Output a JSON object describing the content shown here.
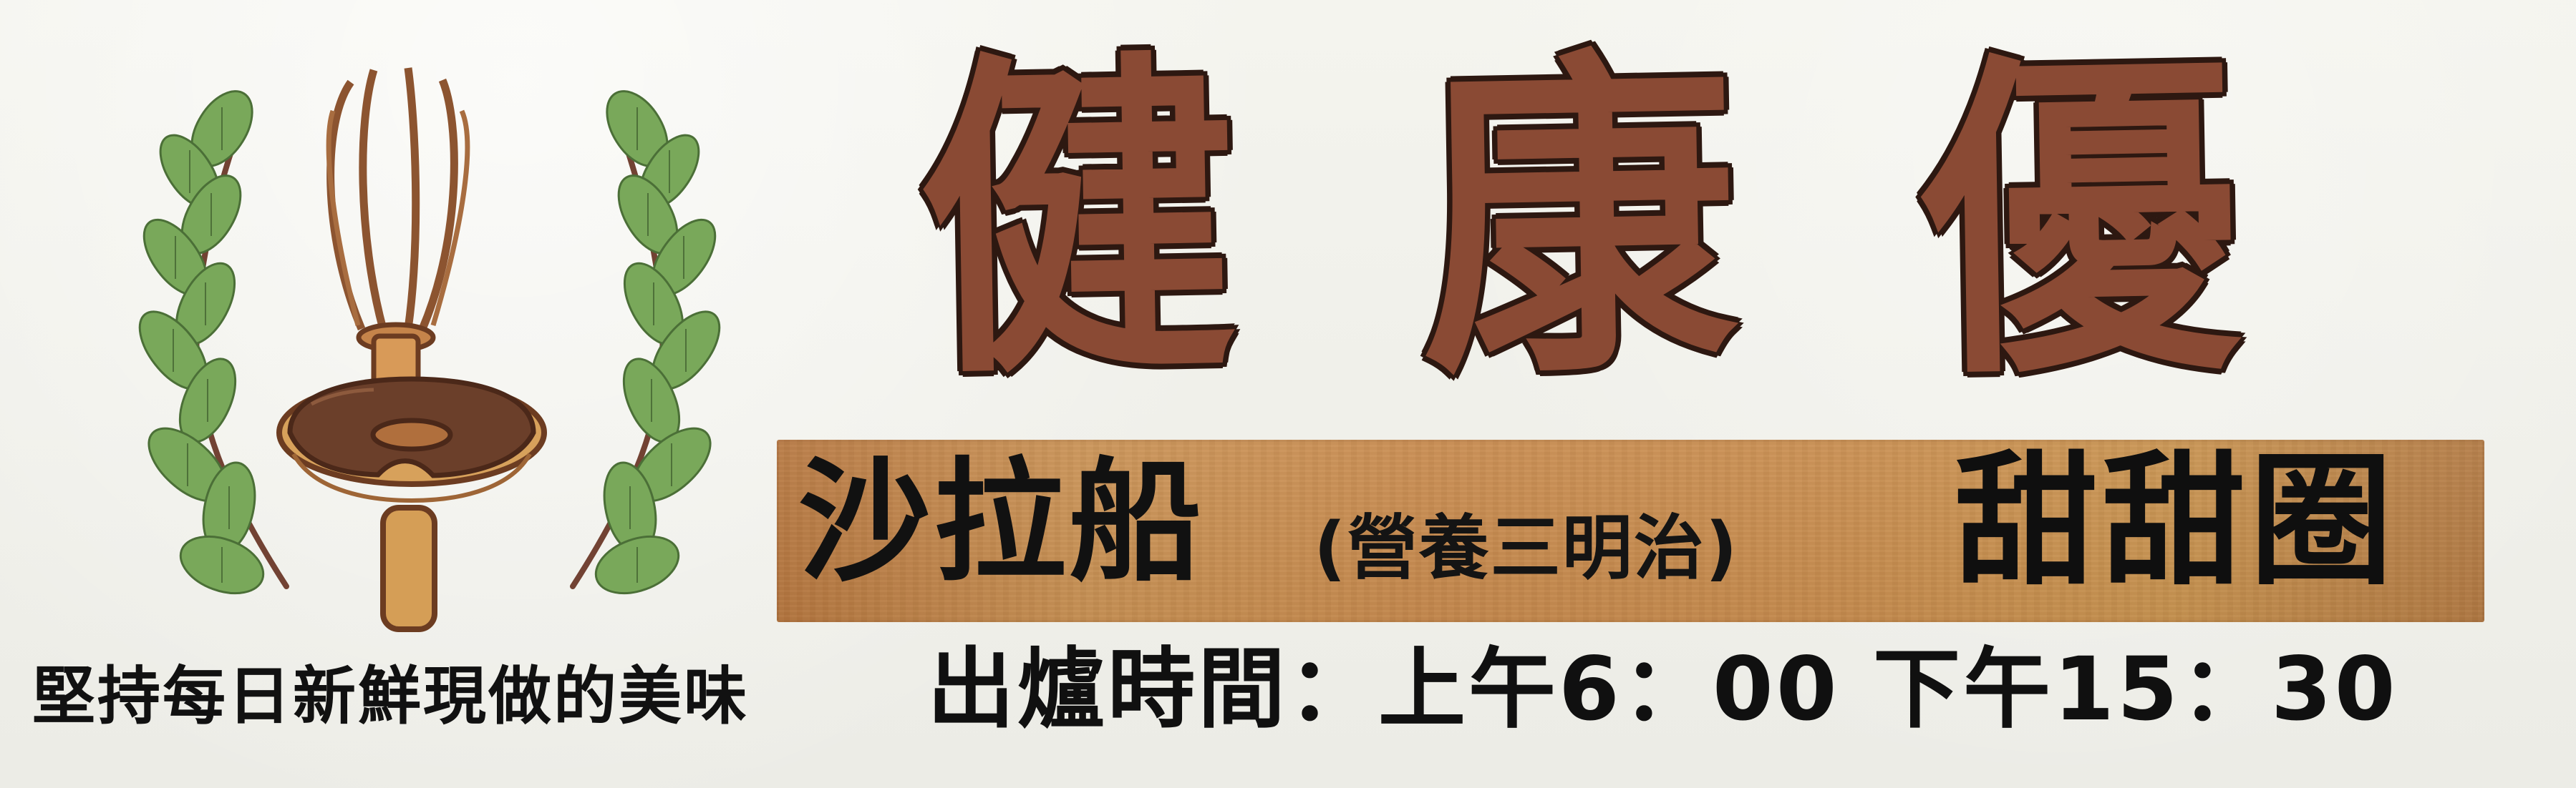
{
  "title": {
    "chars": [
      "健",
      "康",
      "優"
    ]
  },
  "menu": {
    "main": "沙拉船",
    "sub": "(營養三明治)",
    "right": "甜甜圈"
  },
  "bottom": {
    "slogan": "堅持每日新鮮現做的美味",
    "hours": "出爐時間：上午6：00   下午15：30"
  },
  "colors": {
    "background": "#efefe9",
    "title": "#8a4a34",
    "title_outline": "#2d1811",
    "band": "#c98d4e",
    "text": "#111111",
    "leaf": "#79a85a",
    "whisk": "#a36537",
    "donut_icing": "#6b3f2a",
    "donut_dough": "#d7a15b"
  },
  "icons": [
    "whisk-icon",
    "donut-icon",
    "laurel-icon"
  ]
}
